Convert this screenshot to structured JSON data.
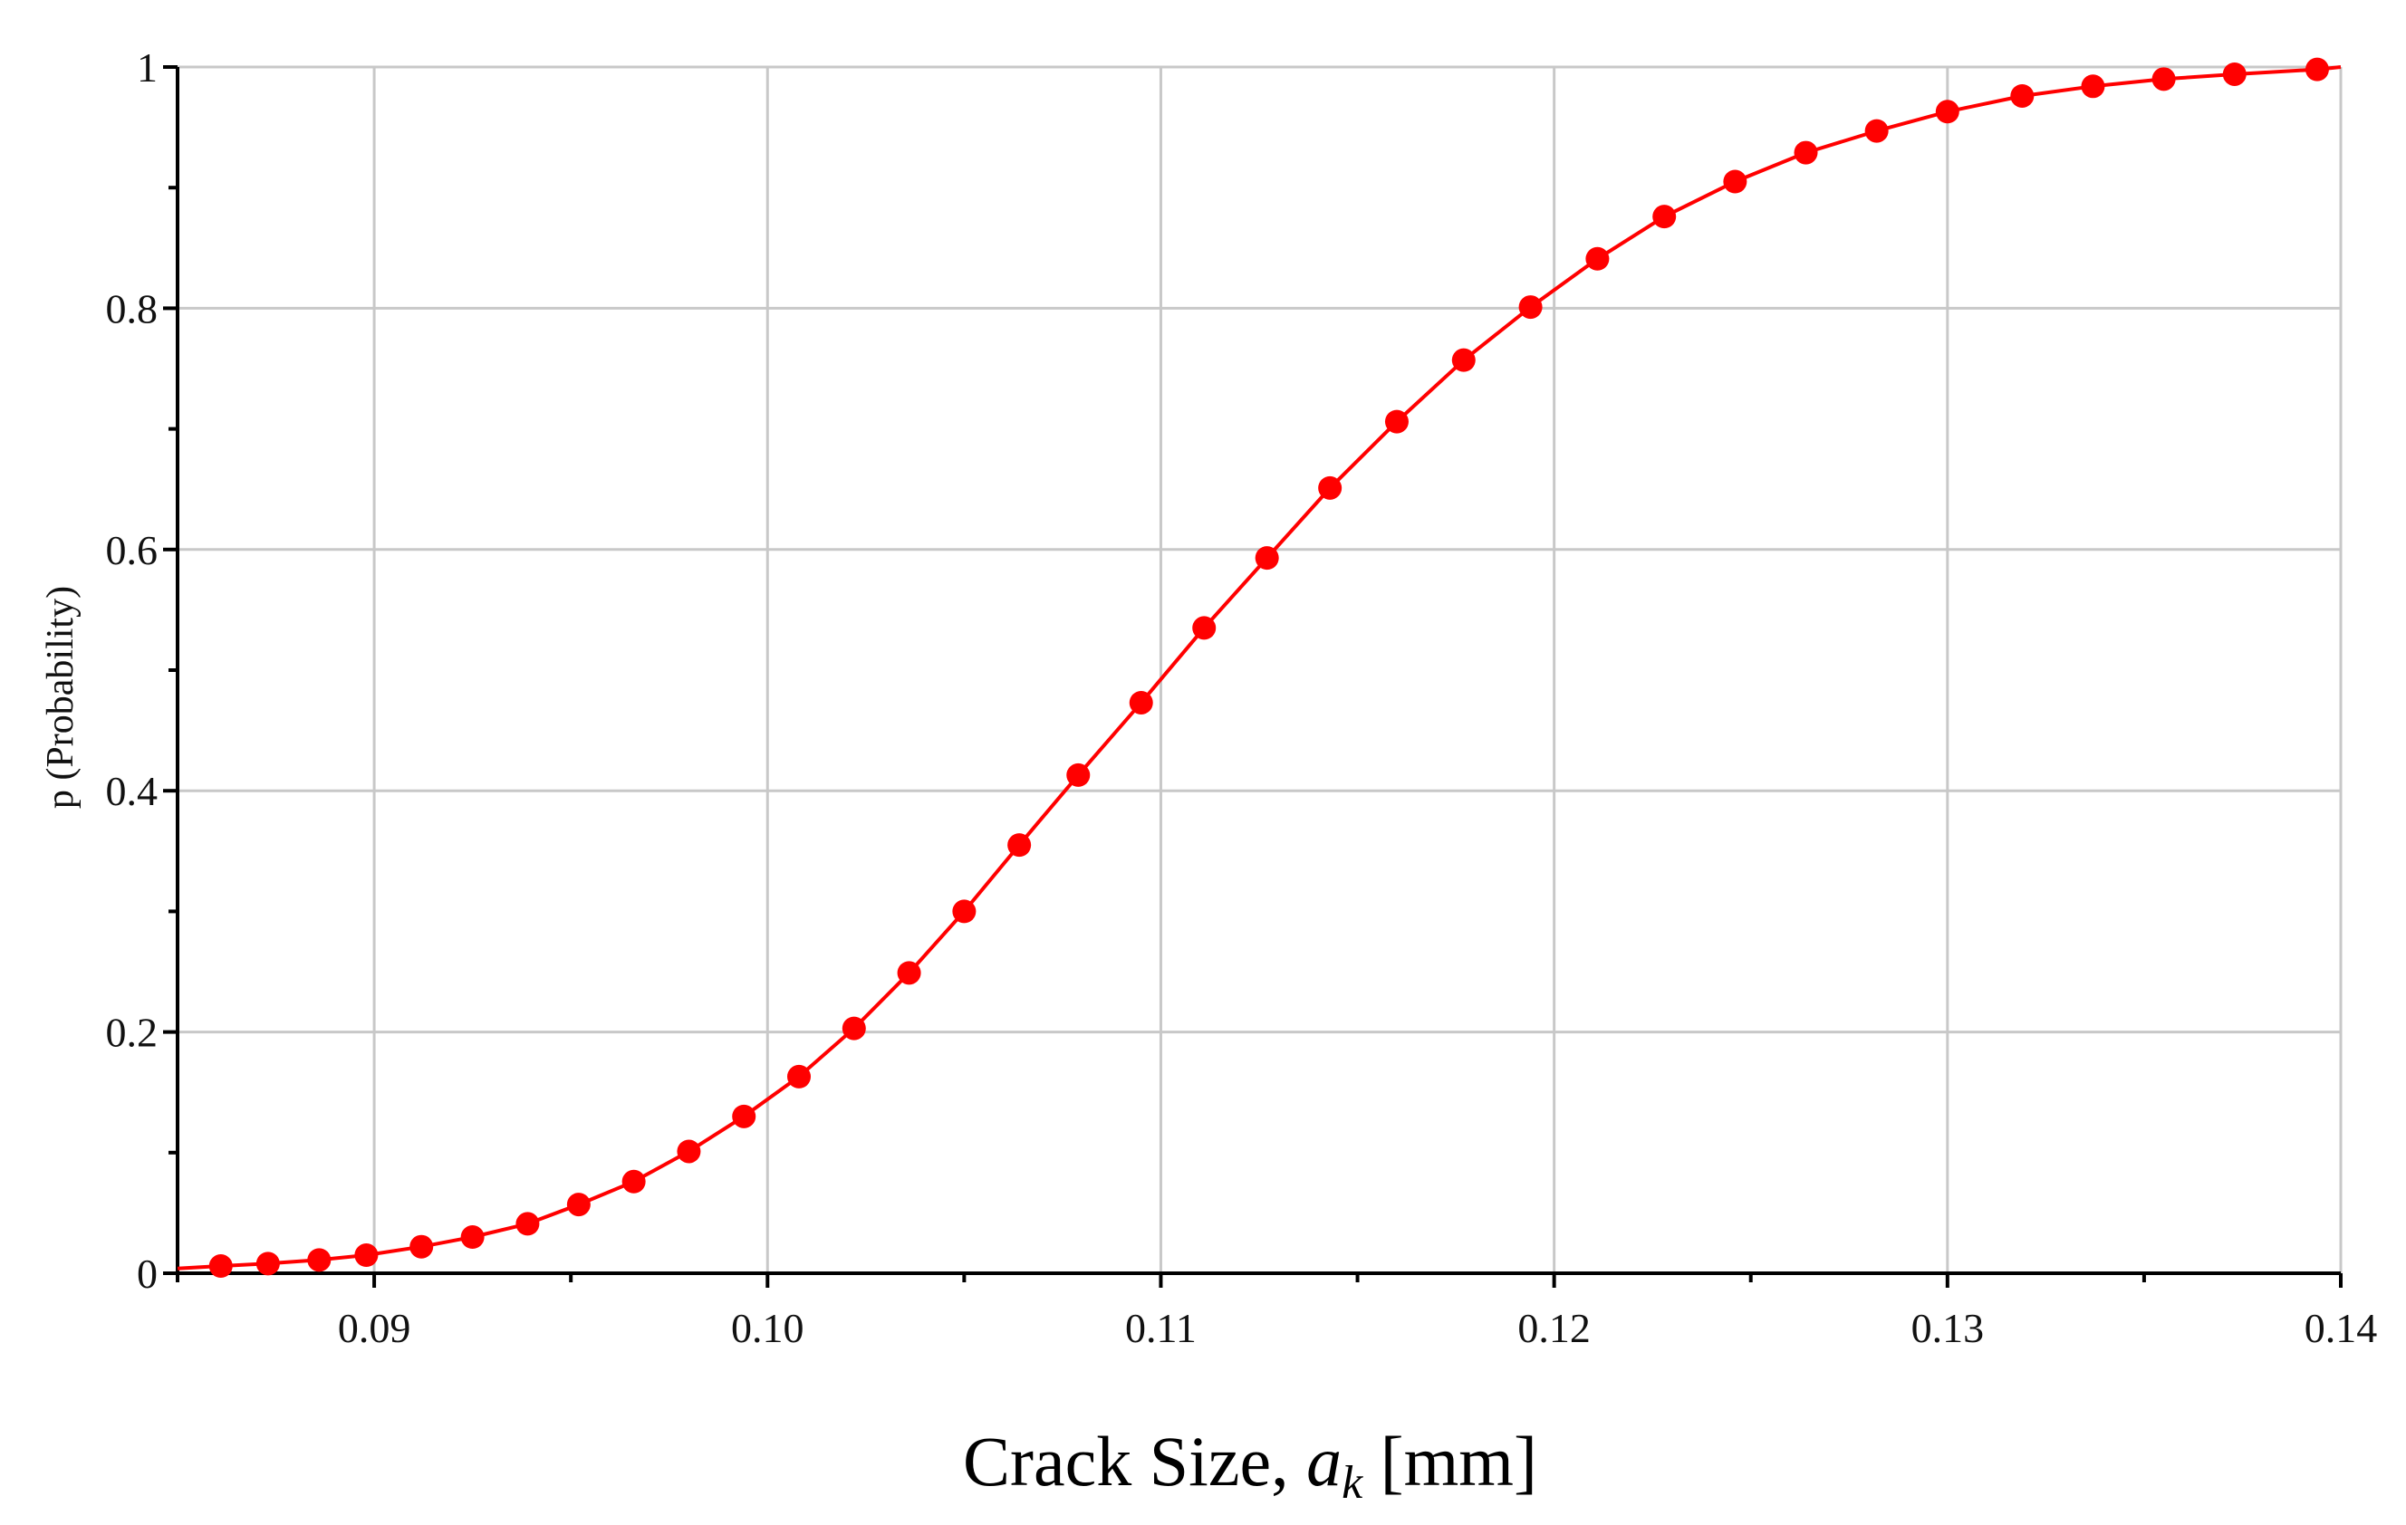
{
  "chart_data": {
    "type": "line",
    "title": "",
    "xlabel_parts": {
      "prefix": "Crack Size, ",
      "var": "a",
      "sub": "k",
      "suffix": " [mm]"
    },
    "ylabel": "p (Probability)",
    "xlim": [
      0.085,
      0.14
    ],
    "ylim": [
      0,
      1
    ],
    "x_ticks": [
      0.09,
      0.1,
      0.11,
      0.12,
      0.13,
      0.14
    ],
    "x_tick_labels": [
      "0.09",
      "0.10",
      "0.11",
      "0.12",
      "0.13",
      "0.14"
    ],
    "y_ticks": [
      0,
      0.2,
      0.4,
      0.6,
      0.8,
      1
    ],
    "y_tick_labels": [
      "0",
      "0.2",
      "0.4",
      "0.6",
      "0.8",
      "1"
    ],
    "grid": true,
    "legend": "none",
    "series": [
      {
        "color": "#ff0000",
        "marker": "circle",
        "x": [
          0.0861,
          0.0873,
          0.0886,
          0.0898,
          0.0912,
          0.0925,
          0.0939,
          0.0952,
          0.0966,
          0.098,
          0.0994,
          0.1008,
          0.1022,
          0.1036,
          0.105,
          0.1064,
          0.1079,
          0.1095,
          0.1111,
          0.1127,
          0.1143,
          0.116,
          0.1177,
          0.1194,
          0.1211,
          0.1228,
          0.1246,
          0.1264,
          0.1282,
          0.13,
          0.1319,
          0.1337,
          0.1355,
          0.1373,
          0.1394
        ],
        "y": [
          0.006,
          0.008,
          0.011,
          0.015,
          0.022,
          0.03,
          0.041,
          0.057,
          0.076,
          0.101,
          0.13,
          0.163,
          0.203,
          0.249,
          0.3,
          0.355,
          0.413,
          0.473,
          0.535,
          0.593,
          0.651,
          0.706,
          0.757,
          0.801,
          0.841,
          0.876,
          0.905,
          0.929,
          0.947,
          0.963,
          0.976,
          0.984,
          0.99,
          0.994,
          0.998
        ]
      }
    ]
  }
}
